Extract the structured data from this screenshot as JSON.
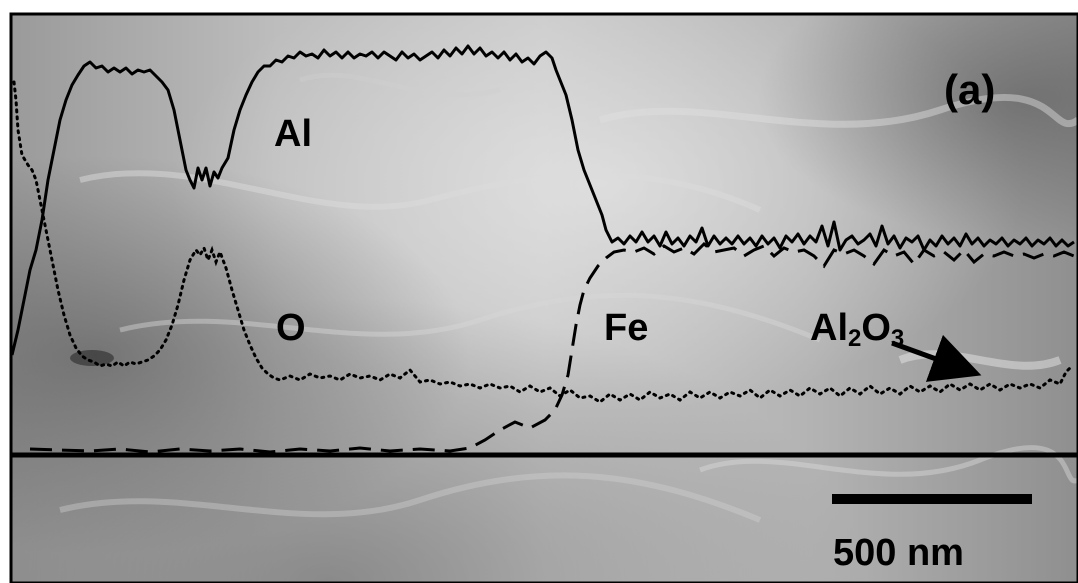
{
  "panel_label": "(a)",
  "element_labels": {
    "al": "Al",
    "o": "O",
    "fe": "Fe"
  },
  "annotation": {
    "main": "Al",
    "sub1": "2",
    "mid": "O",
    "sub2": "3"
  },
  "scale_bar": {
    "text": "500 nm",
    "length_nm": 500
  },
  "colors": {
    "frame": "#000000",
    "curves": "#000000"
  }
}
